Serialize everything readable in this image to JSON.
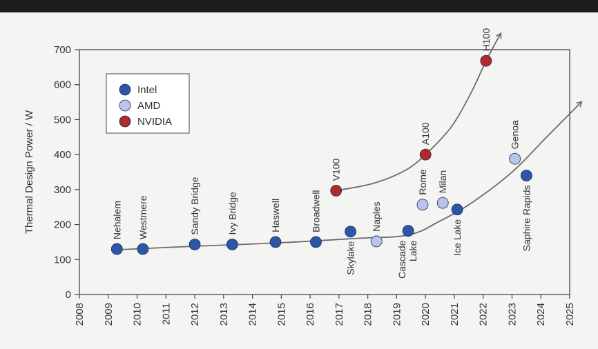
{
  "colors": {
    "Intel": "#2e56a8",
    "AMD": "#b8c4ea",
    "NVIDIA": "#b12a2a",
    "curve": "#6b6b6b",
    "axis": "#444444"
  },
  "chart_data": {
    "type": "scatter",
    "ylabel": "Thermal Design Power / W",
    "xlabel": "",
    "title": "",
    "xlim": [
      2008,
      2025
    ],
    "ylim": [
      0,
      700
    ],
    "x_ticks": [
      "2008",
      "2009",
      "2010",
      "2011",
      "2012",
      "2013",
      "2014",
      "2015",
      "2016",
      "2017",
      "2018",
      "2019",
      "2020",
      "2021",
      "2022",
      "2023",
      "2024",
      "2025"
    ],
    "y_ticks": [
      "0",
      "100",
      "200",
      "300",
      "400",
      "500",
      "600",
      "700"
    ],
    "grid": false,
    "legend_position": "top-left",
    "legend": [
      "Intel",
      "AMD",
      "NVIDIA"
    ],
    "series": [
      {
        "name": "Intel",
        "points": [
          {
            "label": "Nehalem",
            "x": 2009.3,
            "y": 130
          },
          {
            "label": "Westmere",
            "x": 2010.2,
            "y": 130
          },
          {
            "label": "Sandy Bridge",
            "x": 2012.0,
            "y": 143
          },
          {
            "label": "Ivy Bridge",
            "x": 2013.3,
            "y": 143
          },
          {
            "label": "Haswell",
            "x": 2014.8,
            "y": 150
          },
          {
            "label": "Broadwell",
            "x": 2016.2,
            "y": 150
          },
          {
            "label": "Skylake",
            "x": 2017.4,
            "y": 180
          },
          {
            "label": "Cascade Lake",
            "x": 2019.4,
            "y": 182
          },
          {
            "label": "Ice Lake",
            "x": 2021.1,
            "y": 243
          },
          {
            "label": "Saphire Rapids",
            "x": 2023.5,
            "y": 340
          }
        ]
      },
      {
        "name": "AMD",
        "points": [
          {
            "label": "Naples",
            "x": 2018.3,
            "y": 152
          },
          {
            "label": "Rome",
            "x": 2019.9,
            "y": 257
          },
          {
            "label": "Milan",
            "x": 2020.6,
            "y": 262
          },
          {
            "label": "Genoa",
            "x": 2023.1,
            "y": 388
          }
        ]
      },
      {
        "name": "NVIDIA",
        "points": [
          {
            "label": "V100",
            "x": 2016.9,
            "y": 297
          },
          {
            "label": "A100",
            "x": 2020.0,
            "y": 400
          },
          {
            "label": "H100",
            "x": 2022.1,
            "y": 668
          }
        ]
      }
    ]
  }
}
